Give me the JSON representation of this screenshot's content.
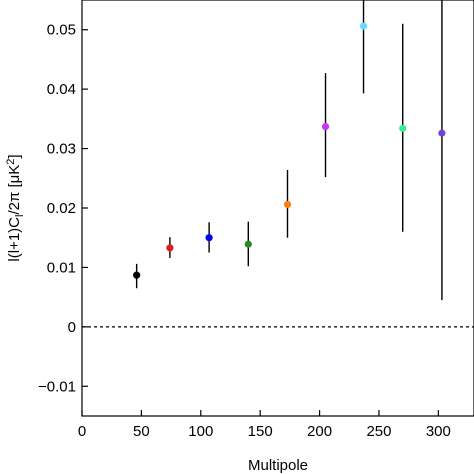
{
  "chart_data": {
    "type": "scatter",
    "xlabel": "Multipole",
    "ylabel": "l(l+1)C",
    "ylabel_sub": "l",
    "ylabel_tail": "/2π [μK",
    "ylabel_sup": "2",
    "ylabel_end": "]",
    "xlim": [
      0,
      330
    ],
    "ylim": [
      -0.015,
      0.055
    ],
    "xticks": [
      0,
      50,
      100,
      150,
      200,
      250,
      300
    ],
    "xtick_labels": [
      "0",
      "50",
      "100",
      "150",
      "200",
      "250",
      "300"
    ],
    "yticks": [
      -0.01,
      0,
      0.01,
      0.02,
      0.03,
      0.04,
      0.05
    ],
    "ytick_labels": [
      "−0.01",
      "0",
      "0.01",
      "0.02",
      "0.03",
      "0.04",
      "0.05"
    ],
    "reference_line": {
      "y": 0,
      "style": "dashed"
    },
    "points": [
      {
        "x": 46,
        "y": 0.0087,
        "err_low": 0.0022,
        "err_high": 0.0019,
        "color": "#000000"
      },
      {
        "x": 74,
        "y": 0.0133,
        "err_low": 0.0017,
        "err_high": 0.0018,
        "color": "#e41a1c"
      },
      {
        "x": 107,
        "y": 0.015,
        "err_low": 0.0025,
        "err_high": 0.0026,
        "color": "#0000ff"
      },
      {
        "x": 140,
        "y": 0.0139,
        "err_low": 0.0037,
        "err_high": 0.0038,
        "color": "#228b22"
      },
      {
        "x": 173,
        "y": 0.0206,
        "err_low": 0.0056,
        "err_high": 0.0058,
        "color": "#ff7f0e"
      },
      {
        "x": 205,
        "y": 0.0337,
        "err_low": 0.0085,
        "err_high": 0.009,
        "color": "#cc33ff"
      },
      {
        "x": 237,
        "y": 0.0506,
        "err_low": 0.0113,
        "err_high": 0.012,
        "color": "#66ddff"
      },
      {
        "x": 270,
        "y": 0.0334,
        "err_low": 0.0174,
        "err_high": 0.0176,
        "color": "#33ee99"
      },
      {
        "x": 303,
        "y": 0.0326,
        "err_low": 0.0281,
        "err_high": 0.03,
        "color": "#7744cc"
      }
    ]
  }
}
